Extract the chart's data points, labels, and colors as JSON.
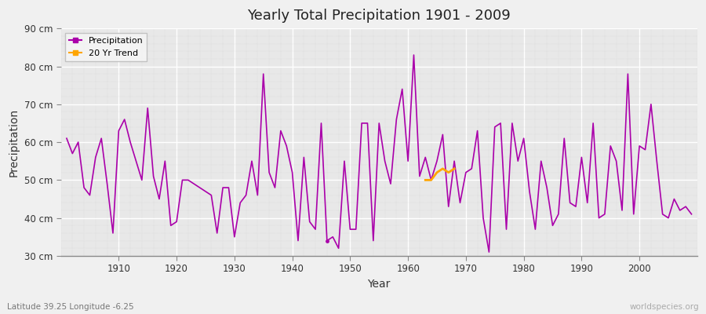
{
  "title": "Yearly Total Precipitation 1901 - 2009",
  "xlabel": "Year",
  "ylabel": "Precipitation",
  "subtitle": "Latitude 39.25 Longitude -6.25",
  "watermark": "worldspecies.org",
  "years": [
    1901,
    1902,
    1903,
    1904,
    1905,
    1906,
    1907,
    1908,
    1909,
    1910,
    1911,
    1912,
    1913,
    1914,
    1915,
    1916,
    1917,
    1918,
    1919,
    1920,
    1921,
    1922,
    1923,
    1924,
    1925,
    1926,
    1927,
    1928,
    1929,
    1930,
    1931,
    1932,
    1933,
    1934,
    1935,
    1936,
    1937,
    1938,
    1939,
    1940,
    1941,
    1942,
    1943,
    1944,
    1945,
    1946,
    1947,
    1948,
    1949,
    1950,
    1951,
    1952,
    1953,
    1954,
    1955,
    1956,
    1957,
    1958,
    1959,
    1960,
    1961,
    1962,
    1963,
    1964,
    1965,
    1966,
    1967,
    1968,
    1969,
    1970,
    1971,
    1972,
    1973,
    1974,
    1975,
    1976,
    1977,
    1978,
    1979,
    1980,
    1981,
    1982,
    1983,
    1984,
    1985,
    1986,
    1987,
    1988,
    1989,
    1990,
    1991,
    1992,
    1993,
    1994,
    1995,
    1996,
    1997,
    1998,
    1999,
    2000,
    2001,
    2002,
    2003,
    2004,
    2005,
    2006,
    2007,
    2008,
    2009
  ],
  "precip": [
    61,
    57,
    60,
    48,
    46,
    56,
    61,
    49,
    36,
    63,
    66,
    60,
    55,
    50,
    69,
    51,
    45,
    55,
    38,
    39,
    50,
    50,
    49,
    48,
    47,
    46,
    36,
    48,
    48,
    35,
    44,
    46,
    55,
    46,
    78,
    52,
    48,
    63,
    59,
    52,
    34,
    56,
    39,
    37,
    65,
    34,
    35,
    32,
    55,
    37,
    37,
    65,
    65,
    34,
    65,
    55,
    49,
    66,
    74,
    55,
    83,
    51,
    56,
    50,
    55,
    62,
    43,
    55,
    44,
    52,
    53,
    63,
    40,
    31,
    64,
    65,
    37,
    65,
    55,
    61,
    47,
    37,
    55,
    48,
    38,
    41,
    61,
    44,
    43,
    56,
    44,
    65,
    40,
    41,
    59,
    55,
    42,
    78,
    41,
    59,
    58,
    70,
    55,
    41,
    40,
    45,
    42,
    43,
    41
  ],
  "trend_years": [
    1963,
    1964,
    1965,
    1966,
    1967,
    1968
  ],
  "trend_values": [
    50,
    50,
    52,
    53,
    52,
    53
  ],
  "line_color": "#AA00AA",
  "trend_color": "#FFA500",
  "bg_color": "#E8E8E8",
  "grid_major_color": "#FFFFFF",
  "grid_minor_color": "#D8D8D8",
  "ylim": [
    30,
    90
  ],
  "yticks": [
    30,
    40,
    50,
    60,
    70,
    80,
    90
  ],
  "ytick_labels": [
    "30 cm",
    "40 cm",
    "50 cm",
    "60 cm",
    "70 cm",
    "80 cm",
    "90 cm"
  ],
  "xticks": [
    1910,
    1920,
    1930,
    1940,
    1950,
    1960,
    1970,
    1980,
    1990,
    2000
  ]
}
